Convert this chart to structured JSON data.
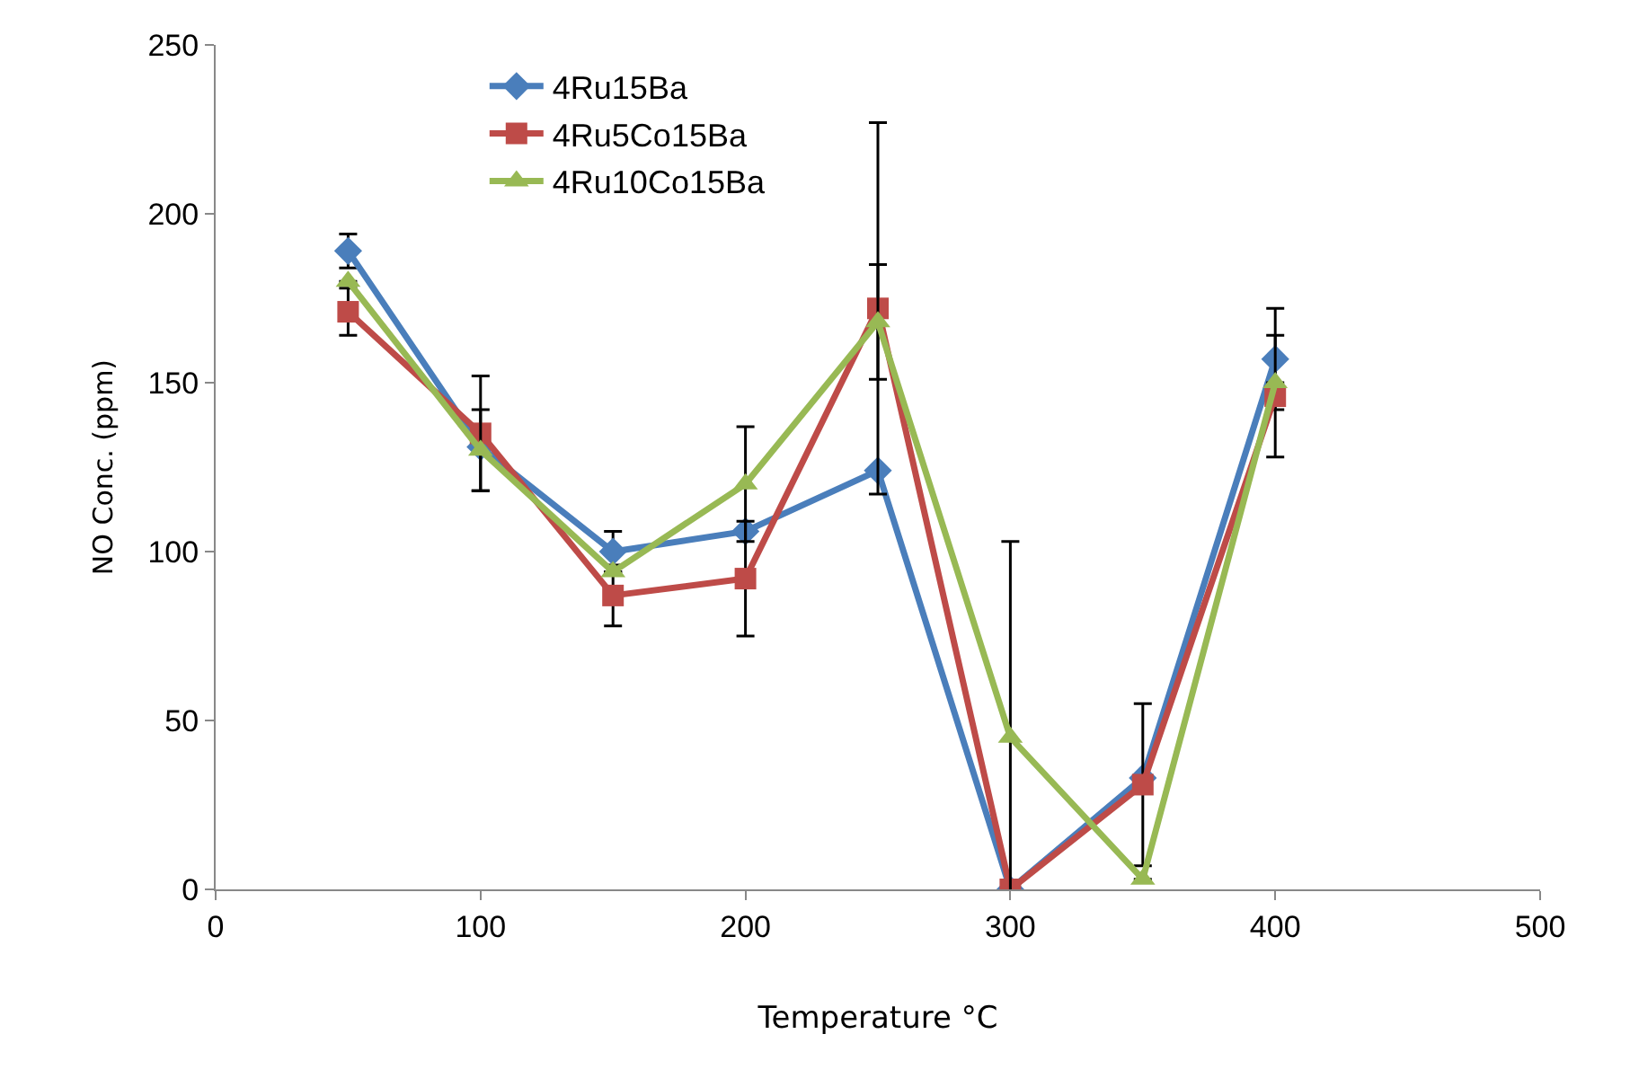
{
  "chart_data": {
    "type": "line",
    "xlabel": "Temperature °C",
    "ylabel": "NO Conc. (ppm)",
    "x": [
      50,
      100,
      150,
      200,
      250,
      300,
      350,
      400
    ],
    "series": [
      {
        "name": "4Ru15Ba",
        "color": "#4a7ebb",
        "marker": "diamond",
        "values": [
          189,
          131,
          100,
          106,
          124,
          0,
          33,
          157
        ],
        "errors": [
          5,
          null,
          6,
          null,
          null,
          null,
          null,
          15
        ]
      },
      {
        "name": "4Ru5Co15Ba",
        "color": "#be4b48",
        "marker": "square",
        "values": [
          171,
          135,
          87,
          92,
          172,
          0,
          31,
          146
        ],
        "errors": [
          7,
          17,
          9,
          17,
          55,
          null,
          24,
          18
        ]
      },
      {
        "name": "4Ru10Co15Ba",
        "color": "#98b954",
        "marker": "triangle",
        "values": [
          180,
          130,
          94,
          120,
          168,
          45,
          3,
          150
        ],
        "errors": [
          null,
          12,
          null,
          17,
          17,
          58,
          null,
          null
        ]
      }
    ],
    "xlim": [
      0,
      500
    ],
    "xticks": [
      0,
      100,
      200,
      300,
      400,
      500
    ],
    "ylim": [
      0,
      250
    ],
    "yticks": [
      0,
      50,
      100,
      150,
      200,
      250
    ],
    "legend": "top left"
  }
}
